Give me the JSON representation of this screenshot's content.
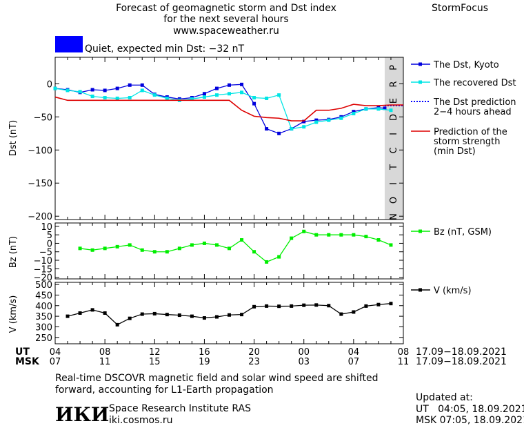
{
  "header": {
    "title_line1": "Forecast of geomagnetic storm and Dst index",
    "title_line2": "for the next several hours",
    "title_line3": "www.spaceweather.ru",
    "brand": "StormFocus",
    "status": "Quiet, expected min Dst: −32 nT"
  },
  "colors": {
    "status_box": "#0000ff",
    "dst_kyoto": "#0000dd",
    "dst_recovered": "#00e5e5",
    "dst_prediction": "#0000ff",
    "storm_strength": "#dd0000",
    "bz": "#00ee00",
    "v": "#000000",
    "prediction_band": "#d8d8d8"
  },
  "time_axis": {
    "ut_label": "UT",
    "msk_label": "MSK",
    "ut_ticks": [
      "04",
      "08",
      "12",
      "16",
      "20",
      "00",
      "04",
      "08"
    ],
    "msk_ticks": [
      "07",
      "11",
      "15",
      "19",
      "23",
      "03",
      "07",
      "11"
    ],
    "ut_date_range": "17.09−18.09.2021",
    "msk_date_range": "17.09−18.09.2021"
  },
  "chart_data": [
    {
      "type": "line",
      "ylabel": "Dst (nT)",
      "ylim": [
        -205,
        40
      ],
      "yticks": [
        0,
        -50,
        -100,
        -150,
        -200
      ],
      "ytick_labels": [
        "0",
        "−50",
        "−100",
        "−150",
        "−200"
      ],
      "xlim_hours_ut": [
        4,
        32
      ],
      "prediction_band_text": "PREDICTION",
      "series": [
        {
          "name": "The Dst, Kyoto",
          "x": [
            4,
            5,
            6,
            7,
            8,
            9,
            10,
            11,
            12,
            13,
            14,
            15,
            16,
            17,
            18,
            19,
            20,
            21,
            22,
            23,
            24,
            25,
            26,
            27,
            28,
            29,
            30,
            30.5
          ],
          "y": [
            -7,
            -9,
            -13,
            -9,
            -10,
            -7,
            -2,
            -2,
            -16,
            -20,
            -23,
            -21,
            -15,
            -7,
            -2,
            -1,
            -30,
            -68,
            -75,
            -68,
            -57,
            -55,
            -54,
            -50,
            -42,
            -38,
            -36,
            -37
          ]
        },
        {
          "name": "The recovered Dst",
          "x": [
            4,
            5,
            6,
            7,
            8,
            9,
            10,
            11,
            12,
            13,
            14,
            15,
            16,
            17,
            18,
            19,
            20,
            21,
            22,
            23,
            24,
            25,
            26,
            27,
            28,
            29,
            30,
            31
          ],
          "y": [
            -7,
            -10,
            -12,
            -19,
            -21,
            -22,
            -21,
            -10,
            -17,
            -22,
            -25,
            -23,
            -20,
            -17,
            -15,
            -13,
            -21,
            -22,
            -17,
            -68,
            -65,
            -58,
            -55,
            -52,
            -45,
            -38,
            -38,
            -40
          ]
        },
        {
          "name": "The Dst prediction\n2−4 hours ahead",
          "x": [
            30.5,
            32
          ],
          "y": [
            -33,
            -33
          ]
        },
        {
          "name": "Prediction of the\nstorm strength\n(min Dst)",
          "x": [
            4,
            5,
            18,
            19,
            20,
            21,
            22,
            23,
            24,
            25,
            26,
            27,
            28,
            29,
            30,
            31,
            32
          ],
          "y": [
            -20,
            -25,
            -25,
            -40,
            -49,
            -51,
            -52,
            -56,
            -56,
            -40,
            -40,
            -37,
            -31,
            -33,
            -33,
            -32,
            -32
          ]
        }
      ]
    },
    {
      "type": "line",
      "ylabel": "Bz (nT)",
      "ylim": [
        -21,
        12
      ],
      "yticks": [
        10,
        5,
        0,
        -5,
        -10,
        -15,
        -20
      ],
      "ytick_labels": [
        "10",
        "5",
        "0",
        "−5",
        "−10",
        "−15",
        "−20"
      ],
      "series": [
        {
          "name": "Bz (nT, GSM)",
          "x": [
            6,
            7,
            8,
            9,
            10,
            11,
            12,
            13,
            14,
            15,
            16,
            17,
            18,
            19,
            20,
            21,
            22,
            23,
            24,
            25,
            26,
            27,
            28,
            29,
            30,
            31
          ],
          "y": [
            -3,
            -4,
            -3,
            -2,
            -1,
            -4,
            -5,
            -5,
            -3,
            -1,
            0,
            -1,
            -3,
            2,
            -5,
            -11,
            -8,
            3,
            7,
            5,
            5,
            5,
            5,
            4,
            2,
            -1
          ]
        }
      ]
    },
    {
      "type": "line",
      "ylabel": "V (km/s)",
      "ylim": [
        220,
        510
      ],
      "yticks": [
        500,
        450,
        400,
        350,
        300,
        250
      ],
      "ytick_labels": [
        "500",
        "450",
        "400",
        "350",
        "300",
        "250"
      ],
      "series": [
        {
          "name": "V (km/s)",
          "x": [
            5,
            6,
            7,
            8,
            9,
            10,
            11,
            12,
            13,
            14,
            15,
            16,
            17,
            18,
            19,
            20,
            21,
            22,
            23,
            24,
            25,
            26,
            27,
            28,
            29,
            30,
            31
          ],
          "y": [
            350,
            365,
            380,
            365,
            310,
            340,
            360,
            362,
            358,
            355,
            350,
            342,
            347,
            356,
            358,
            395,
            398,
            397,
            398,
            402,
            403,
            400,
            360,
            370,
            398,
            405,
            410
          ]
        }
      ]
    }
  ],
  "footer": {
    "note_line1": "Real-time DSCOVR magnetic field and solar wind speed are shifted",
    "note_line2": "forward, accounting for L1-Earth propagation",
    "logo": "ИКИ",
    "institute": "Space Research Institute RAS",
    "site": "iki.cosmos.ru",
    "updated_label": "Updated at:",
    "updated_ut": "UT   04:05, 18.09.2021",
    "updated_msk": "MSK 07:05, 18.09.2021"
  }
}
